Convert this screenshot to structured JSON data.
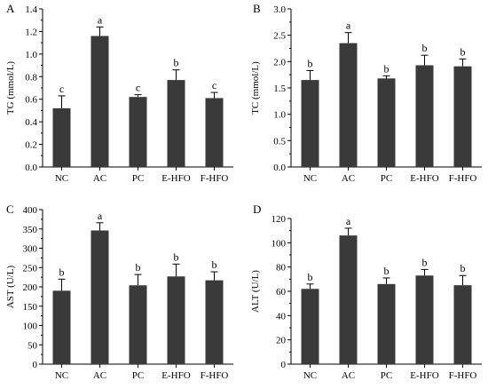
{
  "chart_data": [
    {
      "type": "bar",
      "panel_label": "A",
      "ylabel": "TG (mmol/L)",
      "categories": [
        "NC",
        "AC",
        "PC",
        "E-HFO",
        "F-HFO"
      ],
      "values": [
        0.52,
        1.16,
        0.62,
        0.77,
        0.61
      ],
      "errors": [
        0.11,
        0.08,
        0.02,
        0.09,
        0.05
      ],
      "significance": [
        "c",
        "a",
        "c",
        "b",
        "c"
      ],
      "ylim": [
        0,
        1.4
      ],
      "yticks": [
        "0.0",
        "0.2",
        "0.4",
        "0.6",
        "0.8",
        "1.0",
        "1.2",
        "1.4"
      ],
      "grid": false
    },
    {
      "type": "bar",
      "panel_label": "B",
      "ylabel": "TC (mmol/L)",
      "categories": [
        "NC",
        "AC",
        "PC",
        "E-HFO",
        "F-HFO"
      ],
      "values": [
        1.65,
        2.35,
        1.68,
        1.93,
        1.91
      ],
      "errors": [
        0.18,
        0.2,
        0.05,
        0.19,
        0.14
      ],
      "significance": [
        "b",
        "a",
        "b",
        "b",
        "b"
      ],
      "ylim": [
        0,
        3.0
      ],
      "yticks": [
        "0.0",
        "0.5",
        "1.0",
        "1.5",
        "2.0",
        "2.5",
        "3.0"
      ],
      "grid": false
    },
    {
      "type": "bar",
      "panel_label": "C",
      "ylabel": "AST (U/L)",
      "categories": [
        "NC",
        "AC",
        "PC",
        "E-HFO",
        "F-HFO"
      ],
      "values": [
        190,
        346,
        204,
        227,
        217
      ],
      "errors": [
        30,
        20,
        28,
        32,
        22
      ],
      "significance": [
        "b",
        "a",
        "b",
        "b",
        "b"
      ],
      "ylim": [
        0,
        400
      ],
      "yticks": [
        "0",
        "50",
        "100",
        "150",
        "200",
        "250",
        "300",
        "350",
        "400"
      ],
      "grid": false
    },
    {
      "type": "bar",
      "panel_label": "D",
      "ylabel": "ALT (U/L)",
      "categories": [
        "NC",
        "AC",
        "PC",
        "E-HFO",
        "F-HFO"
      ],
      "values": [
        62,
        106,
        66,
        73,
        65
      ],
      "errors": [
        4,
        6,
        5,
        5,
        8
      ],
      "significance": [
        "b",
        "a",
        "b",
        "b",
        "b"
      ],
      "ylim": [
        0,
        120
      ],
      "yticks": [
        "0",
        "20",
        "40",
        "60",
        "80",
        "100",
        "120"
      ],
      "grid": false
    }
  ]
}
